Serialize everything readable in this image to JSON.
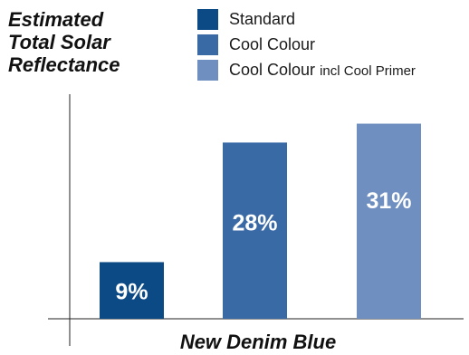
{
  "chart_data": {
    "type": "bar",
    "title": "Estimated\nTotal Solar\nReflectance",
    "xlabel": "New Denim Blue",
    "ylabel": "",
    "ylim": [
      0,
      40
    ],
    "grid": false,
    "legend_position": "top-right",
    "categories": [
      "New Denim Blue"
    ],
    "series": [
      {
        "name": "Standard",
        "values": [
          9
        ],
        "label": "9%",
        "color": "#0c4a86"
      },
      {
        "name": "Cool Colour",
        "values": [
          28
        ],
        "label": "28%",
        "color": "#3a6aa6"
      },
      {
        "name": "Cool Colour incl Cool Primer",
        "values": [
          31
        ],
        "label": "31%",
        "color": "#6f8fc0"
      }
    ]
  },
  "legend": {
    "items": [
      {
        "label_main": "Standard",
        "label_small": "",
        "color": "#0c4a86"
      },
      {
        "label_main": "Cool Colour",
        "label_small": "",
        "color": "#3a6aa6"
      },
      {
        "label_main": "Cool Colour",
        "label_small": "incl Cool Primer",
        "color": "#6f8fc0"
      }
    ]
  }
}
